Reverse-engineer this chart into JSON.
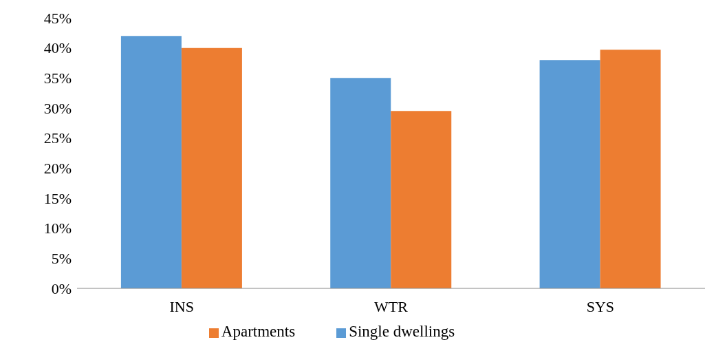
{
  "chart_data": {
    "type": "bar",
    "categories": [
      "INS",
      "WTR",
      "SYS"
    ],
    "series": [
      {
        "name": "Single dwellings",
        "color": "#5b9bd5",
        "values": [
          42,
          35,
          38
        ]
      },
      {
        "name": "Apartments",
        "color": "#ed7d31",
        "values": [
          40,
          29.5,
          39.7
        ]
      }
    ],
    "ylim": [
      0,
      45
    ],
    "yticks": [
      {
        "value": 0,
        "label": "0%"
      },
      {
        "value": 5,
        "label": "5%"
      },
      {
        "value": 10,
        "label": "10%"
      },
      {
        "value": 15,
        "label": "15%"
      },
      {
        "value": 20,
        "label": "20%"
      },
      {
        "value": 25,
        "label": "25%"
      },
      {
        "value": 30,
        "label": "30%"
      },
      {
        "value": 35,
        "label": "35%"
      },
      {
        "value": 40,
        "label": "40%"
      },
      {
        "value": 45,
        "label": "45%"
      }
    ],
    "grid": false,
    "legend": "bottom"
  }
}
